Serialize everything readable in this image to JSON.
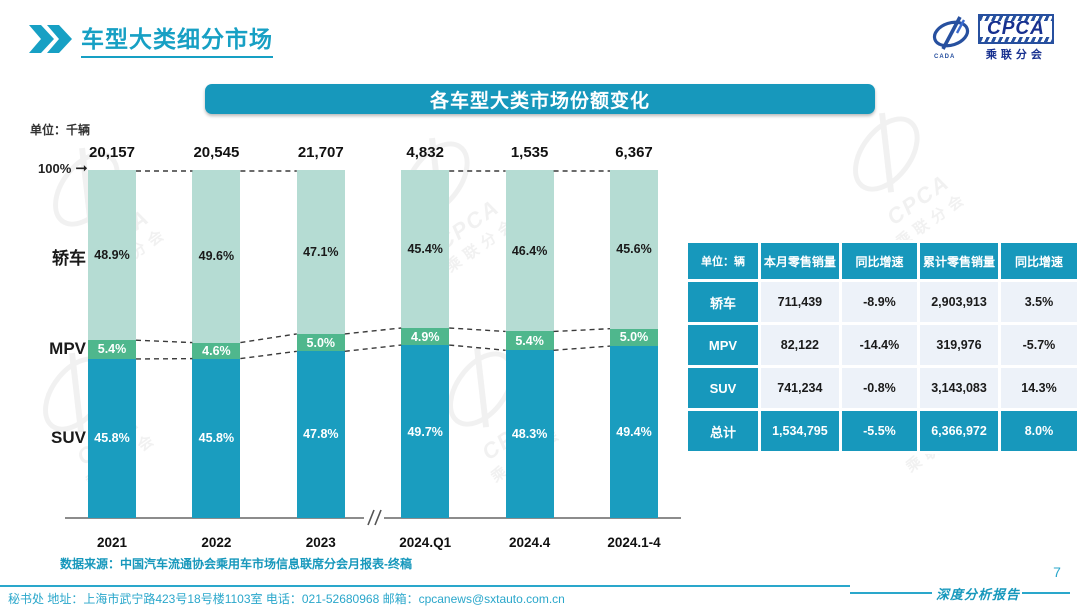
{
  "page": {
    "title": "车型大类细分市场",
    "source": "数据来源：中国汽车流通协会乘用车市场信息联席分会月报表-终稿",
    "footer_text": "秘书处  地址：上海市武宁路423号18号楼1103室  电话：021-52680968   邮箱：cpcanews@sxtauto.com.cn",
    "report_label": "深度分析报告",
    "page_number": "7"
  },
  "logo": {
    "name": "CPCA",
    "sub": "乘联分会",
    "emblem_sub": "CADA"
  },
  "watermark": {
    "text_en": "CPCA",
    "text_cn": "乘联分会"
  },
  "chart": {
    "banner_title": "各车型大类市场份额变化",
    "unit_label": "单位：千辆",
    "top_axis_label": "100%"
  },
  "chart_data": {
    "type": "bar",
    "stacked": true,
    "title": "各车型大类市场份额变化",
    "unit_totals": "千辆",
    "value_suffix": "%",
    "ylim": [
      0,
      100
    ],
    "axis_break_between": [
      "2023",
      "2024.Q1"
    ],
    "categories": [
      "2021",
      "2022",
      "2023",
      "2024.Q1",
      "2024.4",
      "2024.1-4"
    ],
    "totals": [
      "20,157",
      "20,545",
      "21,707",
      "4,832",
      "1,535",
      "6,367"
    ],
    "series": [
      {
        "name": "轿车",
        "color": "#b5dcd3",
        "label_color": "#1a1a1a",
        "values": [
          48.9,
          49.6,
          47.1,
          45.4,
          46.4,
          45.6
        ]
      },
      {
        "name": "MPV",
        "color": "#4fb78d",
        "label_color": "#ffffff",
        "values": [
          5.4,
          4.6,
          5.0,
          4.9,
          5.4,
          5.0
        ]
      },
      {
        "name": "SUV",
        "color": "#1a9dbf",
        "label_color": "#ffffff",
        "values": [
          45.8,
          45.8,
          47.8,
          49.7,
          48.3,
          49.4
        ]
      }
    ]
  },
  "table": {
    "unit_header": "单位：辆",
    "headers": [
      "本月零售销量",
      "同比增速",
      "累计零售销量",
      "同比增速"
    ],
    "rows": [
      {
        "label": "轿车",
        "cells": [
          "711,439",
          "-8.9%",
          "2,903,913",
          "3.5%"
        ],
        "is_total": false
      },
      {
        "label": "MPV",
        "cells": [
          "82,122",
          "-14.4%",
          "319,976",
          "-5.7%"
        ],
        "is_total": false
      },
      {
        "label": "SUV",
        "cells": [
          "741,234",
          "-0.8%",
          "3,143,083",
          "14.3%"
        ],
        "is_total": false
      },
      {
        "label": "总计",
        "cells": [
          "1,534,795",
          "-5.5%",
          "6,366,972",
          "8.0%"
        ],
        "is_total": true
      }
    ]
  },
  "colors": {
    "accent": "#1798bc",
    "sedan": "#b5dcd3",
    "mpv": "#4fb78d",
    "suv": "#1a9dbf",
    "footer": "#2aa7cb"
  }
}
